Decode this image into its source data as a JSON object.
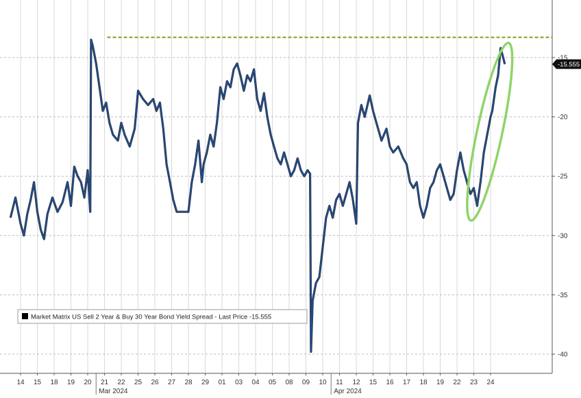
{
  "chart_data": {
    "type": "line",
    "title": "",
    "xlabel": "",
    "ylabel": "",
    "ylim": [
      -41,
      -10
    ],
    "y_ticks": [
      "-15",
      "-20",
      "-25",
      "-30",
      "-35",
      "-40"
    ],
    "x_ticks": [
      "14",
      "15",
      "18",
      "19",
      "20",
      "21",
      "22",
      "25",
      "26",
      "27",
      "28",
      "29",
      "01",
      "03",
      "04",
      "05",
      "08",
      "09",
      "10",
      "11",
      "12",
      "15",
      "16",
      "17",
      "18",
      "19",
      "22",
      "23",
      "24"
    ],
    "month_labels": [
      {
        "label": "Mar 2024",
        "tick_index": 5
      },
      {
        "label": "Apr 2024",
        "tick_index": 19
      }
    ],
    "legend": {
      "text": "Market Matrix US Sell 2 Year & Buy 30 Year Bond Yield Spread - Last Price -15.555",
      "placement": "bottom-left"
    },
    "last_price": {
      "label": "-15.555",
      "value": -15.555
    },
    "reference_line": {
      "value": -13.3,
      "color": "#8b9a12",
      "style": "dashed",
      "start_tick_index": 5
    },
    "highlight": {
      "shape": "ellipse",
      "color": "#8fd46a",
      "start_tick_index": 27.2,
      "end_tick_index": 28.7,
      "y_range": [
        -28.9,
        -13.6
      ]
    },
    "series": [
      {
        "color": "#1f4e8c",
        "points": [
          [
            -0.6,
            -28.5
          ],
          [
            -0.3,
            -26.8
          ],
          [
            0.0,
            -29.0
          ],
          [
            0.2,
            -30.0
          ],
          [
            0.4,
            -28.2
          ],
          [
            0.6,
            -27.0
          ],
          [
            0.8,
            -25.5
          ],
          [
            1.0,
            -28.0
          ],
          [
            1.2,
            -29.5
          ],
          [
            1.4,
            -30.3
          ],
          [
            1.6,
            -28.2
          ],
          [
            1.9,
            -26.8
          ],
          [
            2.2,
            -28.0
          ],
          [
            2.5,
            -27.2
          ],
          [
            2.8,
            -25.5
          ],
          [
            3.0,
            -27.5
          ],
          [
            3.2,
            -24.2
          ],
          [
            3.4,
            -25.0
          ],
          [
            3.6,
            -25.5
          ],
          [
            3.8,
            -26.8
          ],
          [
            4.0,
            -24.5
          ],
          [
            4.15,
            -28.0
          ],
          [
            4.2,
            -13.5
          ],
          [
            4.3,
            -14.0
          ],
          [
            4.5,
            -15.5
          ],
          [
            4.7,
            -17.5
          ],
          [
            4.9,
            -19.5
          ],
          [
            5.1,
            -18.8
          ],
          [
            5.3,
            -20.5
          ],
          [
            5.5,
            -21.5
          ],
          [
            5.8,
            -22.0
          ],
          [
            6.0,
            -20.5
          ],
          [
            6.2,
            -21.5
          ],
          [
            6.5,
            -22.5
          ],
          [
            6.8,
            -21.0
          ],
          [
            7.0,
            -17.8
          ],
          [
            7.3,
            -18.5
          ],
          [
            7.6,
            -19.0
          ],
          [
            7.9,
            -18.5
          ],
          [
            8.1,
            -19.5
          ],
          [
            8.3,
            -18.8
          ],
          [
            8.5,
            -21.0
          ],
          [
            8.7,
            -24.0
          ],
          [
            8.9,
            -25.5
          ],
          [
            9.1,
            -27.0
          ],
          [
            9.3,
            -28.0
          ],
          [
            9.4,
            -28.0
          ],
          [
            10.0,
            -28.0
          ],
          [
            10.2,
            -25.5
          ],
          [
            10.4,
            -24.0
          ],
          [
            10.6,
            -22.0
          ],
          [
            10.8,
            -25.5
          ],
          [
            10.9,
            -24.0
          ],
          [
            11.1,
            -23.0
          ],
          [
            11.3,
            -21.5
          ],
          [
            11.5,
            -22.5
          ],
          [
            11.7,
            -20.5
          ],
          [
            11.9,
            -17.5
          ],
          [
            12.1,
            -18.5
          ],
          [
            12.3,
            -17.0
          ],
          [
            12.5,
            -17.5
          ],
          [
            12.7,
            -16.0
          ],
          [
            12.9,
            -15.5
          ],
          [
            13.1,
            -16.5
          ],
          [
            13.3,
            -17.8
          ],
          [
            13.5,
            -16.5
          ],
          [
            13.7,
            -17.0
          ],
          [
            13.9,
            -16.0
          ],
          [
            14.1,
            -18.5
          ],
          [
            14.3,
            -19.5
          ],
          [
            14.5,
            -18.0
          ],
          [
            14.7,
            -20.0
          ],
          [
            14.9,
            -21.5
          ],
          [
            15.1,
            -22.5
          ],
          [
            15.3,
            -23.5
          ],
          [
            15.5,
            -24.0
          ],
          [
            15.7,
            -23.0
          ],
          [
            15.9,
            -24.0
          ],
          [
            16.1,
            -25.0
          ],
          [
            16.3,
            -24.5
          ],
          [
            16.5,
            -23.5
          ],
          [
            16.7,
            -24.5
          ],
          [
            16.9,
            -25.0
          ],
          [
            17.1,
            -24.5
          ],
          [
            17.25,
            -24.8
          ],
          [
            17.3,
            -39.8
          ],
          [
            17.4,
            -35.5
          ],
          [
            17.6,
            -34.0
          ],
          [
            17.8,
            -33.5
          ],
          [
            18.0,
            -31.0
          ],
          [
            18.2,
            -28.5
          ],
          [
            18.4,
            -27.5
          ],
          [
            18.6,
            -28.5
          ],
          [
            18.8,
            -27.0
          ],
          [
            19.0,
            -26.5
          ],
          [
            19.2,
            -27.5
          ],
          [
            19.4,
            -26.5
          ],
          [
            19.6,
            -25.5
          ],
          [
            19.8,
            -27.0
          ],
          [
            20.0,
            -29.0
          ],
          [
            20.1,
            -20.5
          ],
          [
            20.3,
            -19.0
          ],
          [
            20.5,
            -20.0
          ],
          [
            20.8,
            -18.2
          ],
          [
            21.0,
            -19.5
          ],
          [
            21.2,
            -20.5
          ],
          [
            21.5,
            -22.0
          ],
          [
            21.8,
            -21.0
          ],
          [
            22.0,
            -22.5
          ],
          [
            22.2,
            -23.0
          ],
          [
            22.5,
            -22.5
          ],
          [
            22.8,
            -23.5
          ],
          [
            23.0,
            -24.0
          ],
          [
            23.2,
            -25.5
          ],
          [
            23.4,
            -26.0
          ],
          [
            23.6,
            -25.5
          ],
          [
            23.8,
            -27.5
          ],
          [
            24.0,
            -28.5
          ],
          [
            24.2,
            -27.5
          ],
          [
            24.4,
            -26.0
          ],
          [
            24.6,
            -25.5
          ],
          [
            24.8,
            -24.5
          ],
          [
            25.0,
            -24.0
          ],
          [
            25.2,
            -25.0
          ],
          [
            25.4,
            -26.0
          ],
          [
            25.6,
            -27.0
          ],
          [
            25.8,
            -26.5
          ],
          [
            26.0,
            -24.5
          ],
          [
            26.2,
            -23.0
          ],
          [
            26.4,
            -24.5
          ],
          [
            26.6,
            -25.5
          ],
          [
            26.8,
            -26.5
          ],
          [
            27.0,
            -26.0
          ],
          [
            27.2,
            -27.5
          ],
          [
            27.4,
            -25.5
          ],
          [
            27.6,
            -23.0
          ],
          [
            27.8,
            -21.5
          ],
          [
            28.0,
            -20.0
          ],
          [
            28.1,
            -19.5
          ],
          [
            28.3,
            -17.5
          ],
          [
            28.45,
            -16.5
          ],
          [
            28.6,
            -14.2
          ],
          [
            28.75,
            -15.0
          ],
          [
            28.85,
            -15.555
          ]
        ]
      }
    ]
  }
}
